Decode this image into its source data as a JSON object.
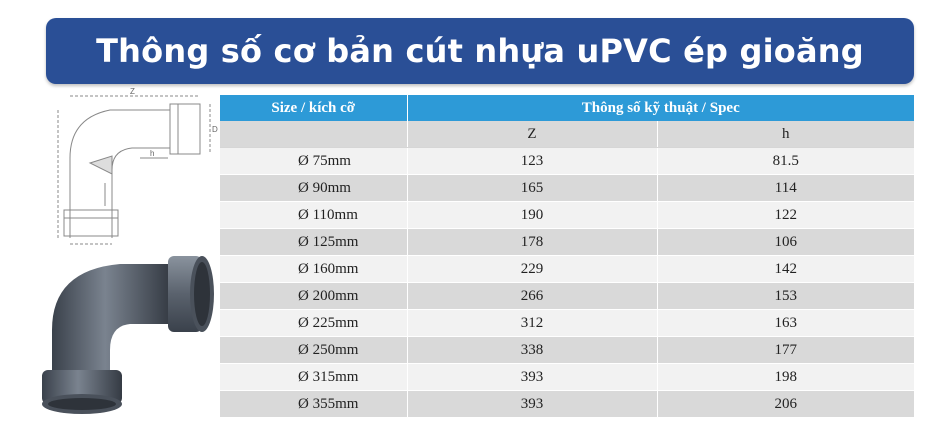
{
  "banner": {
    "title": "Thông số cơ bản cút nhựa uPVC ép gioăng"
  },
  "diagram": {
    "z_label": "Z",
    "h_label": "h",
    "d_label": "D"
  },
  "table": {
    "header_size": "Size / kích cỡ",
    "header_spec": "Thông số kỹ thuật / Spec",
    "sub_z": "Z",
    "sub_h": "h",
    "rows": [
      {
        "size": "Ø 75mm",
        "z": "123",
        "h": "81.5"
      },
      {
        "size": "Ø 90mm",
        "z": "165",
        "h": "114"
      },
      {
        "size": "Ø 110mm",
        "z": "190",
        "h": "122"
      },
      {
        "size": "Ø 125mm",
        "z": "178",
        "h": "106"
      },
      {
        "size": "Ø 160mm",
        "z": "229",
        "h": "142"
      },
      {
        "size": "Ø 200mm",
        "z": "266",
        "h": "153"
      },
      {
        "size": "Ø 225mm",
        "z": "312",
        "h": "163"
      },
      {
        "size": "Ø 250mm",
        "z": "338",
        "h": "177"
      },
      {
        "size": "Ø 315mm",
        "z": "393",
        "h": "198"
      },
      {
        "size": "Ø 355mm",
        "z": "393",
        "h": "206"
      }
    ]
  },
  "colors": {
    "banner": "#2a4f96",
    "table_header": "#2d9ad7",
    "pipe": "#5d6673"
  }
}
